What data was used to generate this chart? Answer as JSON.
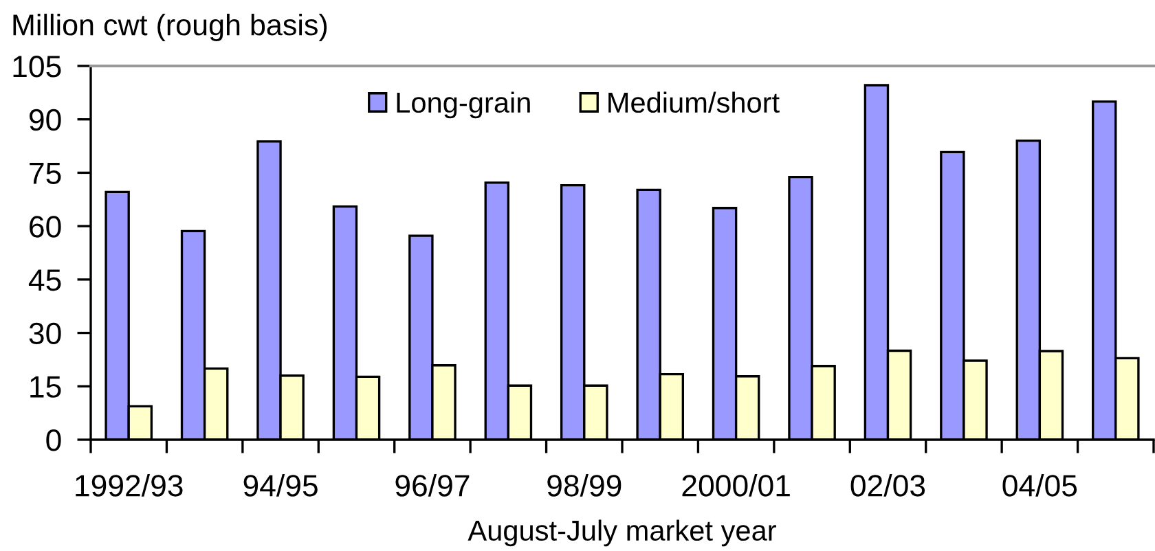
{
  "chart_data": {
    "type": "bar",
    "ylabel": "Million cwt (rough basis)",
    "xlabel": "August-July market year",
    "categories": [
      "1992/93",
      null,
      "94/95",
      null,
      "96/97",
      null,
      "98/99",
      null,
      "2000/01",
      null,
      "02/03",
      null,
      "04/05",
      null
    ],
    "series": [
      {
        "name": "Long-grain",
        "color": "#9999ff",
        "values": [
          69.6,
          58.6,
          83.8,
          65.5,
          57.3,
          72.2,
          71.5,
          70.2,
          65.1,
          73.8,
          99.6,
          80.8,
          84.0,
          95.0
        ]
      },
      {
        "name": "Medium/short",
        "color": "#ffffcc",
        "values": [
          9.4,
          20.0,
          18.0,
          17.7,
          20.9,
          15.2,
          15.2,
          18.4,
          17.8,
          20.7,
          25.0,
          22.2,
          24.9,
          22.9
        ]
      }
    ],
    "ylim": [
      0,
      105
    ],
    "yticks": [
      0,
      15,
      30,
      45,
      60,
      75,
      90,
      105
    ],
    "legend": "top"
  }
}
